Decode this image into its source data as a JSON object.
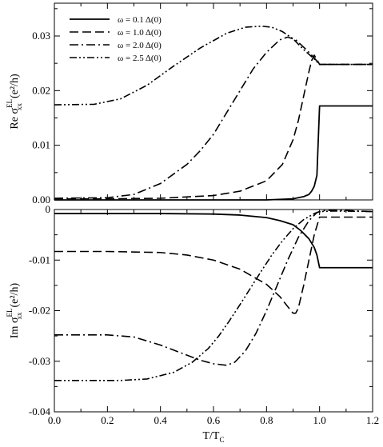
{
  "chart_data": [
    {
      "type": "line",
      "panel": "top",
      "ylabel": {
        "prefix": "Re",
        "symbol": "σ",
        "subscript": "xx",
        "superscript": "EL",
        "unit": "(e²/h)"
      },
      "xlim": [
        0.0,
        1.2
      ],
      "ylim": [
        0.0,
        0.036
      ],
      "yticks": [
        0.0,
        0.01,
        0.02,
        0.03
      ],
      "ytick_labels": [
        "0.00",
        "0.01",
        "0.02",
        "0.03"
      ],
      "legend": {
        "position": "top-left"
      },
      "series": [
        {
          "name": "ω = 0.1 Δ(0)",
          "dash": "solid",
          "x": [
            0.0,
            0.5,
            0.8,
            0.9,
            0.94,
            0.96,
            0.97,
            0.98,
            0.99,
            1.0,
            1.2
          ],
          "y": [
            0.0,
            0.0,
            0.0,
            0.0002,
            0.0006,
            0.001,
            0.0016,
            0.0025,
            0.0045,
            0.0172,
            0.0172
          ]
        },
        {
          "name": "ω = 1.0 Δ(0)",
          "dash": "dash",
          "x": [
            0.0,
            0.2,
            0.4,
            0.6,
            0.7,
            0.8,
            0.86,
            0.9,
            0.92,
            0.94,
            0.96,
            0.97,
            0.98,
            1.0,
            1.2
          ],
          "y": [
            0.0002,
            0.0002,
            0.0003,
            0.0008,
            0.0016,
            0.0035,
            0.0065,
            0.011,
            0.0145,
            0.019,
            0.0235,
            0.0255,
            0.0265,
            0.0248,
            0.0248
          ]
        },
        {
          "name": "ω = 2.0 Δ(0)",
          "dash": "dashdot",
          "x": [
            0.0,
            0.2,
            0.3,
            0.4,
            0.5,
            0.55,
            0.6,
            0.65,
            0.7,
            0.75,
            0.8,
            0.85,
            0.88,
            0.91,
            0.95,
            0.98,
            1.0,
            1.2
          ],
          "y": [
            0.0003,
            0.0004,
            0.001,
            0.003,
            0.0065,
            0.009,
            0.012,
            0.016,
            0.02,
            0.024,
            0.027,
            0.0293,
            0.0298,
            0.0293,
            0.0275,
            0.026,
            0.0248,
            0.0248
          ]
        },
        {
          "name": "ω = 2.5 Δ(0)",
          "dash": "dashdotdot",
          "x": [
            0.0,
            0.15,
            0.25,
            0.35,
            0.45,
            0.55,
            0.65,
            0.72,
            0.78,
            0.82,
            0.86,
            0.9,
            0.94,
            0.98,
            1.0,
            1.2
          ],
          "y": [
            0.0174,
            0.0175,
            0.0185,
            0.021,
            0.0245,
            0.0278,
            0.0305,
            0.0316,
            0.0318,
            0.0316,
            0.0308,
            0.0295,
            0.0275,
            0.0258,
            0.0248,
            0.0248
          ]
        }
      ]
    },
    {
      "type": "line",
      "panel": "bottom",
      "xlabel": {
        "main": "T/T",
        "subscript": "C"
      },
      "ylabel": {
        "prefix": "Im",
        "symbol": "σ",
        "subscript": "xx",
        "superscript": "EL",
        "unit": "(e²/h)"
      },
      "xlim": [
        0.0,
        1.2
      ],
      "ylim": [
        -0.04,
        0.0
      ],
      "xticks": [
        0.0,
        0.2,
        0.4,
        0.6,
        0.8,
        1.0,
        1.2
      ],
      "xtick_labels": [
        "0.0",
        "0.2",
        "0.4",
        "0.6",
        "0.8",
        "1.0",
        "1.2"
      ],
      "yticks": [
        -0.04,
        -0.03,
        -0.02,
        -0.01,
        0.0
      ],
      "ytick_labels": [
        "-0.04",
        "-0.03",
        "-0.02",
        "-0.01",
        "0"
      ],
      "series": [
        {
          "name": "ω = 0.1 Δ(0)",
          "dash": "solid",
          "x": [
            0.0,
            0.4,
            0.6,
            0.7,
            0.8,
            0.85,
            0.9,
            0.93,
            0.96,
            0.98,
            0.99,
            1.0,
            1.2
          ],
          "y": [
            -0.0008,
            -0.0008,
            -0.0009,
            -0.0011,
            -0.0016,
            -0.0022,
            -0.003,
            -0.0042,
            -0.0058,
            -0.0075,
            -0.009,
            -0.0115,
            -0.0115
          ]
        },
        {
          "name": "ω = 1.0 Δ(0)",
          "dash": "dash",
          "x": [
            0.0,
            0.2,
            0.4,
            0.5,
            0.6,
            0.7,
            0.8,
            0.85,
            0.88,
            0.9,
            0.91,
            0.92,
            0.94,
            0.96,
            0.98,
            1.0,
            1.02,
            1.2
          ],
          "y": [
            -0.0083,
            -0.0083,
            -0.0085,
            -0.009,
            -0.01,
            -0.0118,
            -0.0148,
            -0.0172,
            -0.0192,
            -0.0205,
            -0.0205,
            -0.0195,
            -0.015,
            -0.01,
            -0.005,
            -0.0015,
            -0.0015,
            -0.0015
          ]
        },
        {
          "name": "ω = 2.0 Δ(0)",
          "dash": "dashdot",
          "x": [
            0.0,
            0.2,
            0.3,
            0.4,
            0.5,
            0.55,
            0.6,
            0.65,
            0.68,
            0.72,
            0.76,
            0.8,
            0.84,
            0.88,
            0.92,
            0.96,
            0.99,
            1.02,
            1.1,
            1.2
          ],
          "y": [
            -0.0248,
            -0.0248,
            -0.0252,
            -0.0268,
            -0.0288,
            -0.0298,
            -0.0305,
            -0.0308,
            -0.0302,
            -0.028,
            -0.0245,
            -0.02,
            -0.015,
            -0.01,
            -0.0055,
            -0.0022,
            -0.0006,
            -0.0002,
            -0.0002,
            -0.0004
          ]
        },
        {
          "name": "ω = 2.5 Δ(0)",
          "dash": "dashdotdot",
          "x": [
            0.0,
            0.15,
            0.25,
            0.35,
            0.45,
            0.52,
            0.58,
            0.62,
            0.66,
            0.7,
            0.74,
            0.78,
            0.82,
            0.86,
            0.9,
            0.94,
            0.98,
            1.0,
            1.05,
            1.2
          ],
          "y": [
            -0.0338,
            -0.0338,
            -0.0338,
            -0.0335,
            -0.0322,
            -0.0302,
            -0.0275,
            -0.025,
            -0.022,
            -0.0188,
            -0.0155,
            -0.0122,
            -0.009,
            -0.0062,
            -0.0038,
            -0.002,
            -0.0008,
            -0.0004,
            -0.0003,
            -0.0004
          ]
        }
      ]
    }
  ]
}
